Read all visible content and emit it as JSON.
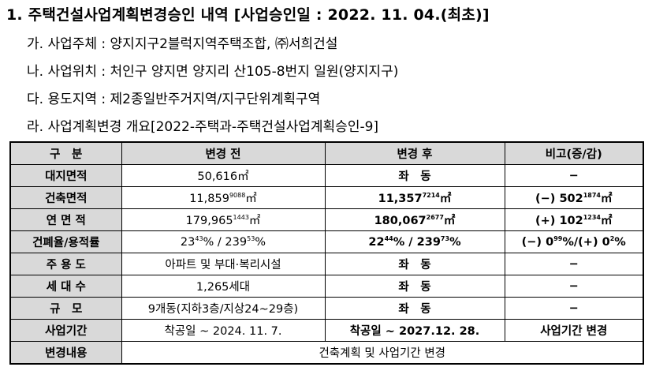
{
  "title": "1. 주택건설사업계획변경승인 내역 [사업승인일 : 2022. 11. 04.(최초)]",
  "items": [
    "가. 사업주체 : 양지지구2블럭지역주택조합, ㈜서희건설",
    "나. 사업위치 : 처인구 양지면 양지리 산105-8번지 일원(양지지구)",
    "다. 용도지역 : 제2종일반주거지역/지구단위계획구역",
    "라. 사업계획변경 개요[2022-주택과-주택건설사업계획승인-9]"
  ],
  "table": {
    "headers": [
      "구　분",
      "변경 전",
      "변경 후",
      "비고(증/감)"
    ],
    "rows": {
      "site_area": {
        "label": "대지면적",
        "before": "50,616㎡",
        "after": "좌　동",
        "note": "−"
      },
      "building_area": {
        "label": "건축면적",
        "before_int": "11,859",
        "before_dec": "9088",
        "before_unit": "㎡",
        "after_int": "11,357",
        "after_dec": "7214",
        "after_unit": "㎡",
        "note_pre": "(−) 502",
        "note_dec": "1874",
        "note_unit": "㎡"
      },
      "floor_area": {
        "label": "연 면 적",
        "before_int": "179,965",
        "before_dec": "1443",
        "before_unit": "㎡",
        "after_int": "180,067",
        "after_dec": "2677",
        "after_unit": "㎡",
        "note_pre": "(+) 102",
        "note_dec": "1234",
        "note_unit": "㎡"
      },
      "ratios": {
        "label": "건폐율/용적률",
        "b1": "23",
        "b1d": "43",
        "b2": "% / 239",
        "b2d": "53",
        "b3": "%",
        "a1": "22",
        "a1d": "44",
        "a2": "% / 239",
        "a2d": "73",
        "a3": "%",
        "n1": "(−) 0",
        "n1d": "99",
        "n2": "%/(+) 0",
        "n2d": "2",
        "n3": "%"
      },
      "main_use": {
        "label": "주 용 도",
        "before": "아파트 및 부대·복리시설",
        "after": "좌　동",
        "note": "−"
      },
      "households": {
        "label": "세 대 수",
        "before": "1,265세대",
        "after": "좌　동",
        "note": "−"
      },
      "scale": {
        "label": "규　모",
        "before": "9개동(지하3층/지상24~29층)",
        "after": "좌　동",
        "note": "−"
      },
      "period": {
        "label": "사업기간",
        "before": "착공일 ~ 2024. 11. 7.",
        "after": "착공일 ~ 2027.12. 28.",
        "note": "사업기간 변경"
      },
      "change": {
        "label": "변경내용",
        "content": "건축계획 및 사업기간 변경"
      }
    }
  }
}
